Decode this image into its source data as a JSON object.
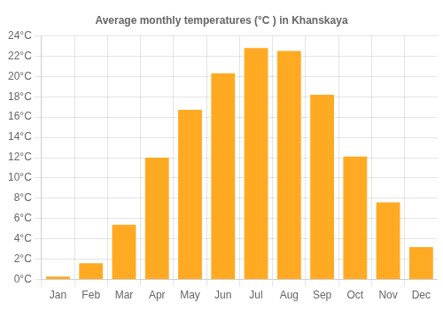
{
  "chart_data": {
    "type": "bar",
    "title": "Average monthly temperatures (°C ) in Khanskaya",
    "categories": [
      "Jan",
      "Feb",
      "Mar",
      "Apr",
      "May",
      "Jun",
      "Jul",
      "Aug",
      "Sep",
      "Oct",
      "Nov",
      "Dec"
    ],
    "values": [
      0.3,
      1.6,
      5.4,
      12.0,
      16.7,
      20.3,
      22.8,
      22.5,
      18.2,
      12.1,
      7.6,
      3.2
    ],
    "color": "#FFAA22",
    "ylim": [
      0,
      24
    ],
    "yticks": [
      {
        "value": 0,
        "label": "0°C"
      },
      {
        "value": 2,
        "label": "2°C"
      },
      {
        "value": 4,
        "label": "4°C"
      },
      {
        "value": 6,
        "label": "6°C"
      },
      {
        "value": 8,
        "label": "8°C"
      },
      {
        "value": 10,
        "label": "10°C"
      },
      {
        "value": 12,
        "label": "12°C"
      },
      {
        "value": 14,
        "label": "14°C"
      },
      {
        "value": 16,
        "label": "16°C"
      },
      {
        "value": 18,
        "label": "18°C"
      },
      {
        "value": 20,
        "label": "20°C"
      },
      {
        "value": 22,
        "label": "22°C"
      },
      {
        "value": 24,
        "label": "24°C"
      }
    ],
    "grid": true
  }
}
